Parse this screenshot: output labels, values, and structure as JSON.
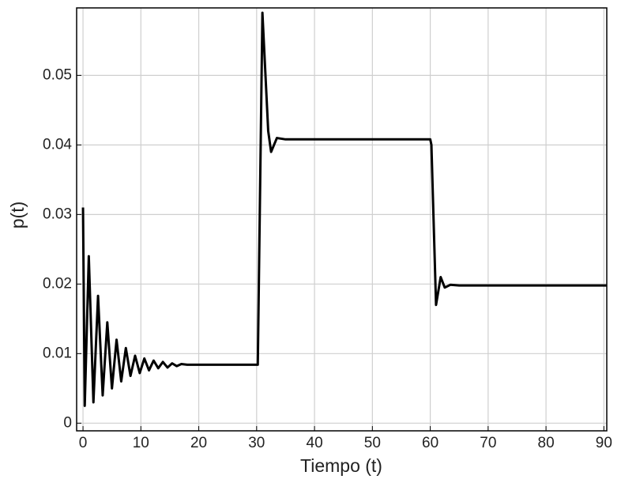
{
  "chart_data": {
    "type": "line",
    "xlabel": "Tiempo (t)",
    "ylabel": "p(t)",
    "x": [
      0,
      0.3,
      1,
      1.8,
      2.6,
      3.4,
      4.2,
      5,
      5.8,
      6.6,
      7.4,
      8.2,
      9,
      9.8,
      10.6,
      11.4,
      12.2,
      13,
      13.8,
      14.6,
      15.4,
      16.2,
      17,
      18,
      30.2,
      31,
      32,
      32.5,
      33.5,
      35,
      60,
      60.2,
      61,
      61.8,
      62.5,
      63.5,
      65,
      90.5
    ],
    "values": [
      0.031,
      0.0025,
      0.024,
      0.003,
      0.0183,
      0.004,
      0.0145,
      0.005,
      0.012,
      0.006,
      0.0108,
      0.0068,
      0.0097,
      0.0072,
      0.0093,
      0.0076,
      0.009,
      0.0079,
      0.0088,
      0.008,
      0.0086,
      0.0082,
      0.0085,
      0.0084,
      0.0084,
      0.059,
      0.042,
      0.039,
      0.041,
      0.0408,
      0.0408,
      0.04,
      0.017,
      0.021,
      0.0195,
      0.0199,
      0.0198,
      0.0198
    ],
    "color": "#000000",
    "xlim": [
      -1.1,
      90.5
    ],
    "ylim": [
      -0.0011,
      0.0597
    ],
    "xticks": [
      0,
      10,
      20,
      30,
      40,
      50,
      60,
      70,
      80,
      90
    ],
    "yticks": [
      0,
      0.01,
      0.02,
      0.03,
      0.04,
      0.05
    ],
    "grid": true
  }
}
